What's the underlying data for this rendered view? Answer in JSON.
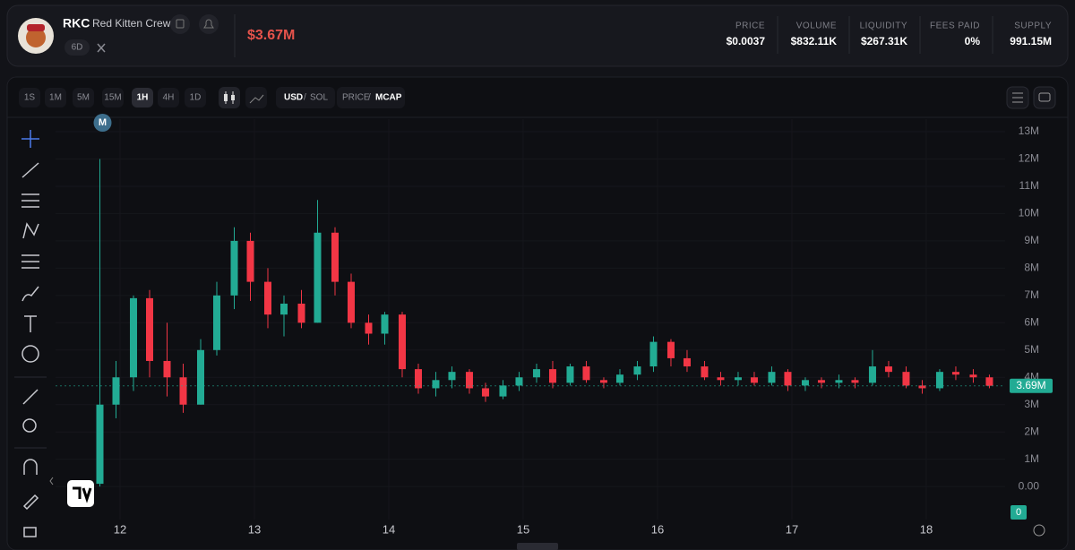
{
  "header": {
    "ticker": "RKC",
    "name": "Red Kitten Crew",
    "age": "6D",
    "market_cap": "$3.67M",
    "stats": [
      {
        "label": "PRICE",
        "value": "$0.0037"
      },
      {
        "label": "VOLUME",
        "value": "$832.11K"
      },
      {
        "label": "LIQUIDITY",
        "value": "$267.31K"
      },
      {
        "label": "FEES PAID",
        "value": "0%"
      },
      {
        "label": "SUPPLY",
        "value": "991.15M"
      }
    ]
  },
  "toolbar": {
    "intervals": [
      "1S",
      "1M",
      "5M",
      "15M",
      "1H",
      "4H",
      "1D"
    ],
    "active_interval": 4,
    "currency": [
      "USD",
      "SOL"
    ],
    "mode": [
      "PRICE",
      "MCAP"
    ],
    "separator": "/"
  },
  "chart_data": {
    "type": "candlestick",
    "annotation": "M",
    "x": [
      11.85,
      11.97,
      12.1,
      12.22,
      12.35,
      12.47,
      12.6,
      12.72,
      12.85,
      12.97,
      13.1,
      13.22,
      13.35,
      13.47,
      13.6,
      13.72,
      13.85,
      13.97,
      14.1,
      14.22,
      14.35,
      14.47,
      14.6,
      14.72,
      14.85,
      14.97,
      15.1,
      15.22,
      15.35,
      15.47,
      15.6,
      15.72,
      15.85,
      15.97,
      16.1,
      16.22,
      16.35,
      16.47,
      16.6,
      16.72,
      16.85,
      16.97,
      17.1,
      17.22,
      17.35,
      17.47,
      17.6,
      17.72,
      17.85,
      17.97,
      18.1,
      18.22,
      18.35,
      18.47
    ],
    "open": [
      0.1,
      3.0,
      4.0,
      6.9,
      4.6,
      4.0,
      3.0,
      5.0,
      7.0,
      9.0,
      7.5,
      6.3,
      6.7,
      6.0,
      9.3,
      7.5,
      6.0,
      5.6,
      6.3,
      4.3,
      3.6,
      3.9,
      4.2,
      3.6,
      3.3,
      3.7,
      4.0,
      4.3,
      3.8,
      4.4,
      3.9,
      3.8,
      4.1,
      4.4,
      5.3,
      4.7,
      4.4,
      4.0,
      3.9,
      4.0,
      3.8,
      4.2,
      3.7,
      3.9,
      3.8,
      3.9,
      3.8,
      4.4,
      4.2,
      3.7,
      3.6,
      4.2,
      4.1,
      4.0
    ],
    "high": [
      12.0,
      4.6,
      7.0,
      7.2,
      6.0,
      4.5,
      5.4,
      7.5,
      9.5,
      9.3,
      8.0,
      7.0,
      7.2,
      10.5,
      9.5,
      7.8,
      6.3,
      6.4,
      6.4,
      4.5,
      4.2,
      4.4,
      4.3,
      3.8,
      3.9,
      4.2,
      4.5,
      4.6,
      4.5,
      4.6,
      4.0,
      4.3,
      4.6,
      5.5,
      5.4,
      5.0,
      4.6,
      4.2,
      4.2,
      4.2,
      4.4,
      4.3,
      4.0,
      4.0,
      4.1,
      4.0,
      5.0,
      4.6,
      4.4,
      3.9,
      4.3,
      4.4,
      4.3,
      4.1
    ],
    "low": [
      0.0,
      2.5,
      3.5,
      4.0,
      3.3,
      2.7,
      3.0,
      4.8,
      6.5,
      6.8,
      5.8,
      5.5,
      5.8,
      6.0,
      7.0,
      5.8,
      5.2,
      5.2,
      4.0,
      3.4,
      3.3,
      3.6,
      3.4,
      3.1,
      3.2,
      3.5,
      3.8,
      3.6,
      3.7,
      3.8,
      3.6,
      3.7,
      3.9,
      4.2,
      4.4,
      4.2,
      3.9,
      3.7,
      3.7,
      3.7,
      3.7,
      3.5,
      3.5,
      3.6,
      3.6,
      3.6,
      3.7,
      4.0,
      3.6,
      3.4,
      3.5,
      3.9,
      3.8,
      3.6
    ],
    "close": [
      3.0,
      4.0,
      6.9,
      4.6,
      4.0,
      3.0,
      5.0,
      7.0,
      9.0,
      7.5,
      6.3,
      6.7,
      6.0,
      9.3,
      7.5,
      6.0,
      5.6,
      6.3,
      4.3,
      3.6,
      3.9,
      4.2,
      3.6,
      3.3,
      3.7,
      4.0,
      4.3,
      3.8,
      4.4,
      3.9,
      3.8,
      4.1,
      4.4,
      5.3,
      4.7,
      4.4,
      4.0,
      3.9,
      4.0,
      3.8,
      4.2,
      3.7,
      3.9,
      3.8,
      3.9,
      3.8,
      4.4,
      4.2,
      3.7,
      3.6,
      4.2,
      4.1,
      4.0,
      3.69
    ],
    "xlim": [
      11.52,
      18.587
    ],
    "xticks": [
      12,
      13,
      14,
      15,
      16,
      17,
      18
    ],
    "ylim": [
      -1.21,
      13.46
    ],
    "yticks": [
      {
        "value": 0,
        "label": "0.00"
      },
      {
        "value": 1,
        "label": "1M"
      },
      {
        "value": 2,
        "label": "2M"
      },
      {
        "value": 3,
        "label": "3M"
      },
      {
        "value": 4,
        "label": "4M"
      },
      {
        "value": 5,
        "label": "5M"
      },
      {
        "value": 6,
        "label": "6M"
      },
      {
        "value": 7,
        "label": "7M"
      },
      {
        "value": 8,
        "label": "8M"
      },
      {
        "value": 9,
        "label": "9M"
      },
      {
        "value": 10,
        "label": "10M"
      },
      {
        "value": 11,
        "label": "11M"
      },
      {
        "value": 12,
        "label": "12M"
      },
      {
        "value": 13,
        "label": "13M"
      }
    ],
    "current_value": {
      "value": 3.69,
      "label": "3.69M"
    },
    "y2ticks": [
      0
    ],
    "colors": {
      "up": "#22ab94",
      "down": "#f23645"
    },
    "grid": true
  }
}
